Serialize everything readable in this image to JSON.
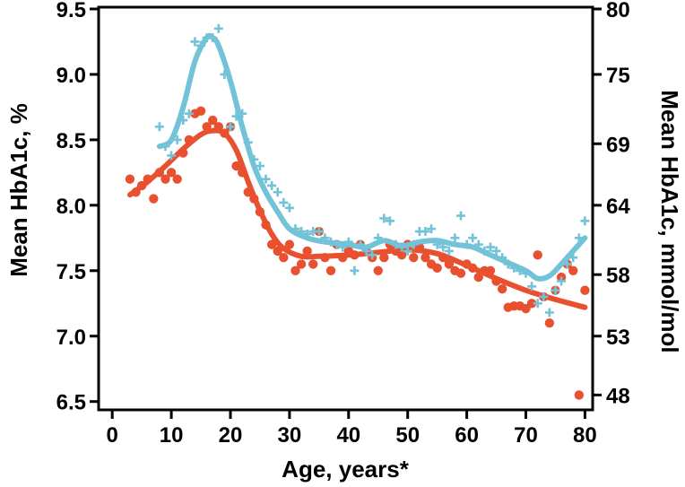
{
  "chart_data": {
    "type": "scatter",
    "xlabel": "Age, years*",
    "ylabel_left": "Mean HbA1c, %",
    "ylabel_right": "Mean HbA1c, mmol/mol",
    "xlim": [
      -2,
      81
    ],
    "ylim": [
      6.45,
      9.5
    ],
    "x_ticks": [
      0,
      10,
      20,
      30,
      40,
      50,
      60,
      70,
      80
    ],
    "y_ticks_left": [
      6.5,
      7.0,
      7.5,
      8.0,
      8.5,
      9.0,
      9.5
    ],
    "y_ticks_right": [
      {
        "label": "48",
        "pct": 6.55
      },
      {
        "label": "53",
        "pct": 7.0
      },
      {
        "label": "58",
        "pct": 7.47
      },
      {
        "label": "64",
        "pct": 8.0
      },
      {
        "label": "69",
        "pct": 8.47
      },
      {
        "label": "75",
        "pct": 9.0
      },
      {
        "label": "80",
        "pct": 9.5
      }
    ],
    "grid": false,
    "legend": "none",
    "series": [
      {
        "marker": "dot",
        "color": "#e8502f",
        "points": [
          [
            3,
            8.2
          ],
          [
            4,
            8.1
          ],
          [
            5,
            8.15
          ],
          [
            6,
            8.2
          ],
          [
            7,
            8.05
          ],
          [
            8,
            8.25
          ],
          [
            9,
            8.2
          ],
          [
            10,
            8.25
          ],
          [
            11,
            8.2
          ],
          [
            12,
            8.4
          ],
          [
            13,
            8.5
          ],
          [
            14,
            8.7
          ],
          [
            15,
            8.72
          ],
          [
            16,
            8.6
          ],
          [
            17,
            8.65
          ],
          [
            18,
            8.6
          ],
          [
            19,
            8.55
          ],
          [
            20,
            8.6
          ],
          [
            21,
            8.3
          ],
          [
            22,
            8.25
          ],
          [
            23,
            8.1
          ],
          [
            24,
            8.05
          ],
          [
            25,
            7.95
          ],
          [
            26,
            7.85
          ],
          [
            27,
            7.7
          ],
          [
            28,
            7.65
          ],
          [
            29,
            7.6
          ],
          [
            30,
            7.7
          ],
          [
            31,
            7.5
          ],
          [
            32,
            7.55
          ],
          [
            33,
            7.65
          ],
          [
            34,
            7.55
          ],
          [
            35,
            7.8
          ],
          [
            36,
            7.6
          ],
          [
            37,
            7.5
          ],
          [
            38,
            7.7
          ],
          [
            39,
            7.6
          ],
          [
            40,
            7.65
          ],
          [
            41,
            7.62
          ],
          [
            42,
            7.7
          ],
          [
            43,
            7.65
          ],
          [
            44,
            7.6
          ],
          [
            45,
            7.5
          ],
          [
            46,
            7.6
          ],
          [
            47,
            7.7
          ],
          [
            48,
            7.65
          ],
          [
            49,
            7.62
          ],
          [
            50,
            7.7
          ],
          [
            51,
            7.6
          ],
          [
            52,
            7.68
          ],
          [
            53,
            7.6
          ],
          [
            54,
            7.55
          ],
          [
            55,
            7.52
          ],
          [
            56,
            7.6
          ],
          [
            57,
            7.55
          ],
          [
            58,
            7.5
          ],
          [
            59,
            7.48
          ],
          [
            60,
            7.55
          ],
          [
            61,
            7.52
          ],
          [
            62,
            7.45
          ],
          [
            63,
            7.5
          ],
          [
            64,
            7.5
          ],
          [
            65,
            7.42
          ],
          [
            66,
            7.36
          ],
          [
            67,
            7.22
          ],
          [
            68,
            7.23
          ],
          [
            69,
            7.23
          ],
          [
            70,
            7.21
          ],
          [
            71,
            7.25
          ],
          [
            72,
            7.62
          ],
          [
            73,
            7.3
          ],
          [
            74,
            7.1
          ],
          [
            75,
            7.35
          ],
          [
            76,
            7.45
          ],
          [
            77,
            7.55
          ],
          [
            78,
            7.5
          ],
          [
            79,
            6.55
          ],
          [
            80,
            7.35
          ]
        ],
        "trend": [
          [
            3,
            8.08
          ],
          [
            6,
            8.18
          ],
          [
            9,
            8.3
          ],
          [
            12,
            8.43
          ],
          [
            15,
            8.54
          ],
          [
            17,
            8.57
          ],
          [
            19,
            8.55
          ],
          [
            21,
            8.42
          ],
          [
            23,
            8.18
          ],
          [
            25,
            7.96
          ],
          [
            27,
            7.78
          ],
          [
            29,
            7.67
          ],
          [
            32,
            7.61
          ],
          [
            35,
            7.61
          ],
          [
            40,
            7.62
          ],
          [
            45,
            7.64
          ],
          [
            50,
            7.66
          ],
          [
            55,
            7.63
          ],
          [
            60,
            7.54
          ],
          [
            65,
            7.44
          ],
          [
            70,
            7.35
          ],
          [
            75,
            7.28
          ],
          [
            80,
            7.22
          ]
        ]
      },
      {
        "marker": "plus",
        "color": "#72c2d8",
        "points": [
          [
            8,
            8.6
          ],
          [
            9,
            8.45
          ],
          [
            10,
            8.38
          ],
          [
            11,
            8.5
          ],
          [
            12,
            8.65
          ],
          [
            13,
            8.7
          ],
          [
            14,
            9.25
          ],
          [
            15,
            9.22
          ],
          [
            16,
            9.28
          ],
          [
            17,
            9.28
          ],
          [
            18,
            9.35
          ],
          [
            19,
            9.0
          ],
          [
            20,
            8.6
          ],
          [
            21,
            8.68
          ],
          [
            22,
            8.7
          ],
          [
            23,
            8.48
          ],
          [
            24,
            8.35
          ],
          [
            25,
            8.3
          ],
          [
            26,
            8.2
          ],
          [
            27,
            8.15
          ],
          [
            28,
            8.1
          ],
          [
            29,
            8.02
          ],
          [
            30,
            7.98
          ],
          [
            31,
            7.82
          ],
          [
            32,
            7.8
          ],
          [
            33,
            7.78
          ],
          [
            34,
            7.8
          ],
          [
            35,
            7.8
          ],
          [
            36,
            7.75
          ],
          [
            37,
            7.72
          ],
          [
            38,
            7.7
          ],
          [
            39,
            7.68
          ],
          [
            40,
            7.72
          ],
          [
            41,
            7.5
          ],
          [
            42,
            7.7
          ],
          [
            43,
            7.65
          ],
          [
            44,
            7.62
          ],
          [
            45,
            7.75
          ],
          [
            46,
            7.9
          ],
          [
            47,
            7.88
          ],
          [
            48,
            7.7
          ],
          [
            49,
            7.68
          ],
          [
            50,
            7.65
          ],
          [
            51,
            7.7
          ],
          [
            52,
            7.8
          ],
          [
            53,
            7.8
          ],
          [
            54,
            7.82
          ],
          [
            55,
            7.7
          ],
          [
            56,
            7.68
          ],
          [
            57,
            7.65
          ],
          [
            58,
            7.75
          ],
          [
            59,
            7.92
          ],
          [
            60,
            7.7
          ],
          [
            61,
            7.75
          ],
          [
            62,
            7.7
          ],
          [
            63,
            7.65
          ],
          [
            64,
            7.68
          ],
          [
            65,
            7.65
          ],
          [
            66,
            7.6
          ],
          [
            67,
            7.55
          ],
          [
            68,
            7.52
          ],
          [
            69,
            7.5
          ],
          [
            70,
            7.48
          ],
          [
            71,
            7.38
          ],
          [
            72,
            7.25
          ],
          [
            73,
            7.3
          ],
          [
            74,
            7.18
          ],
          [
            75,
            7.35
          ],
          [
            76,
            7.42
          ],
          [
            77,
            7.55
          ],
          [
            78,
            7.6
          ],
          [
            79,
            7.75
          ],
          [
            80,
            7.88
          ]
        ],
        "trend": [
          [
            8,
            8.45
          ],
          [
            10,
            8.5
          ],
          [
            12,
            8.75
          ],
          [
            14,
            9.1
          ],
          [
            16,
            9.28
          ],
          [
            17,
            9.28
          ],
          [
            18,
            9.22
          ],
          [
            20,
            8.95
          ],
          [
            22,
            8.6
          ],
          [
            24,
            8.3
          ],
          [
            26,
            8.1
          ],
          [
            28,
            7.95
          ],
          [
            30,
            7.82
          ],
          [
            33,
            7.75
          ],
          [
            36,
            7.72
          ],
          [
            40,
            7.7
          ],
          [
            43,
            7.68
          ],
          [
            46,
            7.73
          ],
          [
            49,
            7.69
          ],
          [
            52,
            7.72
          ],
          [
            55,
            7.73
          ],
          [
            58,
            7.7
          ],
          [
            61,
            7.68
          ],
          [
            64,
            7.62
          ],
          [
            67,
            7.56
          ],
          [
            70,
            7.5
          ],
          [
            72,
            7.44
          ],
          [
            74,
            7.46
          ],
          [
            76,
            7.55
          ],
          [
            78,
            7.65
          ],
          [
            80,
            7.75
          ]
        ]
      }
    ]
  }
}
